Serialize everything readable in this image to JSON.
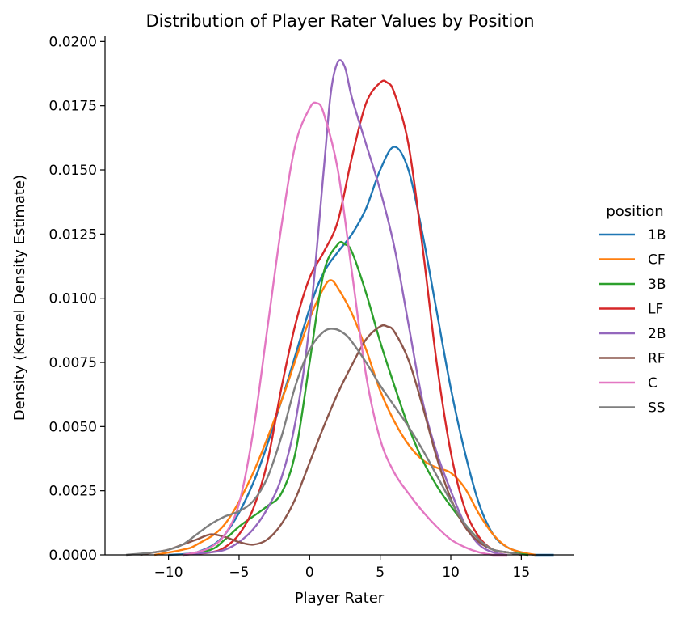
{
  "chart_data": {
    "type": "line",
    "title": "Distribution of Player Rater Values by Position",
    "xlabel": "Player Rater",
    "ylabel": "Density (Kernel Density Estimate)",
    "xlim": [
      -14.5,
      18.7
    ],
    "ylim": [
      0,
      0.0202
    ],
    "xticks": [
      -10,
      -5,
      0,
      5,
      10,
      15
    ],
    "xtick_labels": [
      "−10",
      "−5",
      "0",
      "5",
      "10",
      "15"
    ],
    "yticks": [
      0,
      0.0025,
      0.005,
      0.0075,
      0.01,
      0.0125,
      0.015,
      0.0175,
      0.02
    ],
    "ytick_labels": [
      "0.0000",
      "0.0025",
      "0.0050",
      "0.0075",
      "0.0100",
      "0.0125",
      "0.0150",
      "0.0175",
      "0.0200"
    ],
    "grid": false,
    "legend": {
      "title": "position",
      "placement": "right"
    },
    "series": [
      {
        "name": "1B",
        "color": "#1f77b4",
        "x": [
          -10,
          -8,
          -6,
          -4,
          -2,
          0,
          1,
          2,
          3,
          4,
          5,
          6,
          7,
          8,
          9,
          10,
          11,
          12,
          13,
          14,
          15,
          16,
          17.3
        ],
        "y": [
          0.0,
          0.0001,
          0.0008,
          0.0028,
          0.006,
          0.0096,
          0.011,
          0.0118,
          0.0125,
          0.0135,
          0.015,
          0.0159,
          0.015,
          0.0125,
          0.0095,
          0.0065,
          0.004,
          0.002,
          0.0008,
          0.0003,
          0.0001,
          0.0,
          0.0
        ]
      },
      {
        "name": "CF",
        "color": "#ff7f0e",
        "x": [
          -11,
          -9,
          -8,
          -6,
          -4,
          -2,
          -1,
          0,
          1,
          1.5,
          2,
          3,
          4,
          5,
          6,
          7,
          8,
          9,
          10,
          11,
          12,
          13,
          14,
          15,
          16
        ],
        "y": [
          0.0,
          0.0002,
          0.0004,
          0.0012,
          0.0032,
          0.006,
          0.0076,
          0.0092,
          0.0104,
          0.0107,
          0.0104,
          0.0094,
          0.008,
          0.0064,
          0.0052,
          0.0043,
          0.0037,
          0.0034,
          0.0032,
          0.0026,
          0.0016,
          0.0008,
          0.0003,
          0.0001,
          0.0
        ]
      },
      {
        "name": "3B",
        "color": "#2ca02c",
        "x": [
          -9,
          -7,
          -6,
          -5,
          -4,
          -3,
          -2,
          -1,
          0,
          1,
          2,
          2.5,
          3,
          4,
          5,
          6,
          7,
          8,
          9,
          10,
          11,
          12,
          13,
          14,
          15.5
        ],
        "y": [
          0.0,
          0.0002,
          0.0006,
          0.0011,
          0.0015,
          0.0019,
          0.0024,
          0.004,
          0.0075,
          0.011,
          0.0121,
          0.0121,
          0.0118,
          0.0102,
          0.0083,
          0.0066,
          0.005,
          0.0037,
          0.0027,
          0.0019,
          0.0012,
          0.0006,
          0.0002,
          0.0001,
          0.0
        ]
      },
      {
        "name": "LF",
        "color": "#d62728",
        "x": [
          -9,
          -7,
          -6,
          -5,
          -4,
          -3,
          -2,
          -1,
          0,
          1,
          2,
          3,
          4,
          5,
          5.5,
          6,
          7,
          8,
          9,
          10,
          11,
          12,
          13,
          14,
          15
        ],
        "y": [
          0.0,
          0.0001,
          0.0003,
          0.0008,
          0.0018,
          0.0036,
          0.0065,
          0.009,
          0.0108,
          0.0118,
          0.013,
          0.0155,
          0.0176,
          0.0184,
          0.0184,
          0.018,
          0.016,
          0.012,
          0.0075,
          0.004,
          0.0018,
          0.0007,
          0.0002,
          0.0001,
          0.0
        ]
      },
      {
        "name": "2B",
        "color": "#9467bd",
        "x": [
          -9,
          -7,
          -6,
          -5,
          -4,
          -3,
          -2,
          -1,
          0,
          1,
          1.5,
          2,
          2.5,
          3,
          4,
          5,
          6,
          7,
          8,
          9,
          10,
          11,
          12,
          13,
          14
        ],
        "y": [
          0.0,
          0.0001,
          0.0002,
          0.0005,
          0.001,
          0.0018,
          0.003,
          0.0052,
          0.009,
          0.015,
          0.018,
          0.0192,
          0.019,
          0.0178,
          0.016,
          0.0142,
          0.012,
          0.009,
          0.006,
          0.004,
          0.0025,
          0.0012,
          0.0004,
          0.0001,
          0.0
        ]
      },
      {
        "name": "RF",
        "color": "#8c564b",
        "x": [
          -12,
          -11,
          -10,
          -9,
          -8,
          -7,
          -6,
          -5,
          -4,
          -3,
          -2,
          -1,
          0,
          1,
          2,
          3,
          4,
          5,
          5.5,
          6,
          7,
          8,
          9,
          10,
          11,
          12,
          13,
          14,
          15
        ],
        "y": [
          0.0,
          0.0001,
          0.0002,
          0.0004,
          0.0006,
          0.0008,
          0.0007,
          0.0005,
          0.0004,
          0.0006,
          0.0012,
          0.0022,
          0.0036,
          0.005,
          0.0063,
          0.0074,
          0.0084,
          0.0089,
          0.0089,
          0.0087,
          0.0076,
          0.0058,
          0.0038,
          0.0022,
          0.0011,
          0.0005,
          0.0002,
          0.0001,
          0.0
        ]
      },
      {
        "name": "C",
        "color": "#e377c2",
        "x": [
          -9,
          -8,
          -7,
          -6,
          -5,
          -4,
          -3,
          -2,
          -1,
          0,
          0.5,
          1,
          2,
          3,
          4,
          5,
          6,
          7,
          8,
          9,
          10,
          11,
          12,
          13,
          14
        ],
        "y": [
          0.0,
          0.0001,
          0.0003,
          0.0008,
          0.002,
          0.0048,
          0.0088,
          0.0128,
          0.016,
          0.0174,
          0.0176,
          0.0172,
          0.015,
          0.011,
          0.007,
          0.0045,
          0.0032,
          0.0024,
          0.0017,
          0.0011,
          0.0006,
          0.0003,
          0.0001,
          0.0,
          0.0
        ]
      },
      {
        "name": "SS",
        "color": "#7f7f7f",
        "x": [
          -13,
          -11,
          -10,
          -9,
          -8,
          -7,
          -6,
          -5,
          -4,
          -3,
          -2,
          -1,
          0,
          1,
          1.8,
          2.5,
          3,
          4,
          5,
          6,
          7,
          8,
          9,
          10,
          11,
          12,
          13,
          14,
          15
        ],
        "y": [
          0.0,
          0.0001,
          0.0002,
          0.0004,
          0.0008,
          0.0012,
          0.0015,
          0.0017,
          0.0021,
          0.003,
          0.0046,
          0.0066,
          0.008,
          0.0087,
          0.0088,
          0.0086,
          0.0083,
          0.0075,
          0.0066,
          0.0058,
          0.005,
          0.0041,
          0.0031,
          0.0021,
          0.0012,
          0.0006,
          0.0002,
          0.0001,
          0.0
        ]
      }
    ]
  }
}
